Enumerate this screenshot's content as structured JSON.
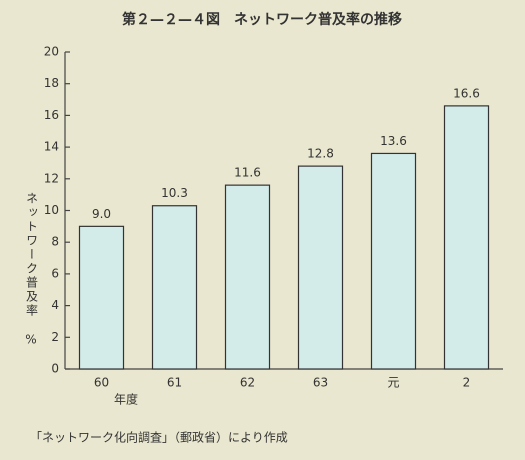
{
  "chart_data": {
    "type": "bar",
    "title": "第２—２—４図　ネットワーク普及率の推移",
    "y_label": "ネットワーク普及率",
    "y_unit": "%",
    "x_label": "年度",
    "source": "「ネットワーク化向調査」（郵政省）により作成",
    "categories": [
      "60",
      "61",
      "62",
      "63",
      "元",
      "2"
    ],
    "values": [
      9.0,
      10.3,
      11.6,
      12.8,
      13.6,
      16.6
    ],
    "value_labels": [
      "9.0",
      "10.3",
      "11.6",
      "12.8",
      "13.6",
      "16.6"
    ],
    "color": "#d3ecea",
    "ylim": [
      0,
      20
    ],
    "yticks": [
      0,
      2,
      4,
      6,
      8,
      10,
      12,
      14,
      16,
      18,
      20
    ],
    "grid": false
  }
}
